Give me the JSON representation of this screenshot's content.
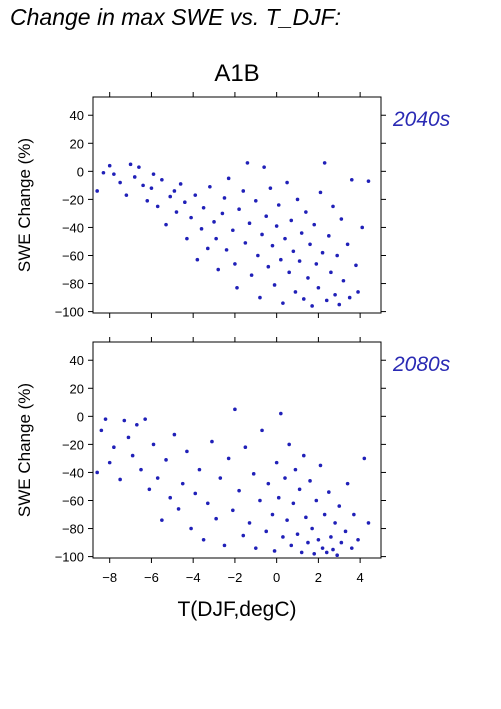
{
  "figure": {
    "title": "Change in max SWE vs. T_DJF:",
    "scenario": "A1B",
    "xlabel": "T(DJF,degC)",
    "ylabel": "SWE Change (%)",
    "point_color": "#2020b8",
    "label_color": "#2a2ab4"
  },
  "chart_data": [
    {
      "type": "scatter",
      "panel_label": "2040s",
      "xlabel": "T(DJF,degC)",
      "ylabel": "SWE Change (%)",
      "xlim": [
        -8.8,
        5.0
      ],
      "ylim": [
        -101,
        53
      ],
      "xticks": [
        -8,
        -6,
        -4,
        -2,
        0,
        2,
        4
      ],
      "yticks": [
        -100,
        -80,
        -60,
        -40,
        -20,
        0,
        20,
        40
      ],
      "points": [
        [
          -8.6,
          -14
        ],
        [
          -8.3,
          -1
        ],
        [
          -8.0,
          4
        ],
        [
          -7.8,
          -2
        ],
        [
          -7.5,
          -8
        ],
        [
          -7.2,
          -17
        ],
        [
          -7.0,
          5
        ],
        [
          -6.8,
          -4
        ],
        [
          -6.6,
          3
        ],
        [
          -6.4,
          -10
        ],
        [
          -6.2,
          -21
        ],
        [
          -6.0,
          -12
        ],
        [
          -5.9,
          -2
        ],
        [
          -5.7,
          -25
        ],
        [
          -5.5,
          -6
        ],
        [
          -5.3,
          -38
        ],
        [
          -5.1,
          -18
        ],
        [
          -4.9,
          -14
        ],
        [
          -4.8,
          -29
        ],
        [
          -4.6,
          -9
        ],
        [
          -4.4,
          -22
        ],
        [
          -4.3,
          -48
        ],
        [
          -4.1,
          -33
        ],
        [
          -3.9,
          -17
        ],
        [
          -3.8,
          -63
        ],
        [
          -3.6,
          -41
        ],
        [
          -3.5,
          -26
        ],
        [
          -3.3,
          -55
        ],
        [
          -3.2,
          -11
        ],
        [
          -3.0,
          -36
        ],
        [
          -2.9,
          -48
        ],
        [
          -2.8,
          -70
        ],
        [
          -2.6,
          -30
        ],
        [
          -2.5,
          -19
        ],
        [
          -2.4,
          -56
        ],
        [
          -2.3,
          -5
        ],
        [
          -2.1,
          -42
        ],
        [
          -2.0,
          -66
        ],
        [
          -1.9,
          -83
        ],
        [
          -1.8,
          -27
        ],
        [
          -1.6,
          -14
        ],
        [
          -1.5,
          -51
        ],
        [
          -1.4,
          6
        ],
        [
          -1.3,
          -37
        ],
        [
          -1.2,
          -74
        ],
        [
          -1.0,
          -21
        ],
        [
          -0.9,
          -60
        ],
        [
          -0.8,
          -90
        ],
        [
          -0.7,
          -45
        ],
        [
          -0.6,
          3
        ],
        [
          -0.5,
          -32
        ],
        [
          -0.4,
          -68
        ],
        [
          -0.3,
          -12
        ],
        [
          -0.2,
          -53
        ],
        [
          -0.1,
          -81
        ],
        [
          0.0,
          -39
        ],
        [
          0.1,
          -24
        ],
        [
          0.2,
          -63
        ],
        [
          0.3,
          -94
        ],
        [
          0.4,
          -48
        ],
        [
          0.5,
          -8
        ],
        [
          0.6,
          -72
        ],
        [
          0.7,
          -35
        ],
        [
          0.8,
          -57
        ],
        [
          0.9,
          -86
        ],
        [
          1.0,
          -20
        ],
        [
          1.1,
          -64
        ],
        [
          1.2,
          -44
        ],
        [
          1.3,
          -91
        ],
        [
          1.4,
          -29
        ],
        [
          1.5,
          -76
        ],
        [
          1.6,
          -52
        ],
        [
          1.7,
          -96
        ],
        [
          1.8,
          -38
        ],
        [
          1.9,
          -66
        ],
        [
          2.0,
          -83
        ],
        [
          2.1,
          -15
        ],
        [
          2.2,
          -58
        ],
        [
          2.3,
          6
        ],
        [
          2.4,
          -92
        ],
        [
          2.5,
          -46
        ],
        [
          2.6,
          -72
        ],
        [
          2.7,
          -25
        ],
        [
          2.8,
          -88
        ],
        [
          2.9,
          -60
        ],
        [
          3.0,
          -95
        ],
        [
          3.1,
          -34
        ],
        [
          3.2,
          -78
        ],
        [
          3.4,
          -52
        ],
        [
          3.5,
          -90
        ],
        [
          3.6,
          -6
        ],
        [
          3.8,
          -67
        ],
        [
          3.9,
          -86
        ],
        [
          4.1,
          -40
        ],
        [
          4.4,
          -7
        ]
      ]
    },
    {
      "type": "scatter",
      "panel_label": "2080s",
      "xlabel": "T(DJF,degC)",
      "ylabel": "SWE Change (%)",
      "xlim": [
        -8.8,
        5.0
      ],
      "ylim": [
        -101,
        53
      ],
      "xticks": [
        -8,
        -6,
        -4,
        -2,
        0,
        2,
        4
      ],
      "yticks": [
        -100,
        -80,
        -60,
        -40,
        -20,
        0,
        20,
        40
      ],
      "points": [
        [
          -8.6,
          -40
        ],
        [
          -8.4,
          -10
        ],
        [
          -8.2,
          -2
        ],
        [
          -8.0,
          -33
        ],
        [
          -7.8,
          -22
        ],
        [
          -7.5,
          -45
        ],
        [
          -7.3,
          -3
        ],
        [
          -7.1,
          -15
        ],
        [
          -6.9,
          -28
        ],
        [
          -6.7,
          -6
        ],
        [
          -6.5,
          -38
        ],
        [
          -6.3,
          -2
        ],
        [
          -6.1,
          -52
        ],
        [
          -5.9,
          -20
        ],
        [
          -5.7,
          -44
        ],
        [
          -5.5,
          -74
        ],
        [
          -5.3,
          -31
        ],
        [
          -5.1,
          -58
        ],
        [
          -4.9,
          -13
        ],
        [
          -4.7,
          -66
        ],
        [
          -4.5,
          -48
        ],
        [
          -4.3,
          -25
        ],
        [
          -4.1,
          -80
        ],
        [
          -3.9,
          -55
        ],
        [
          -3.7,
          -38
        ],
        [
          -3.5,
          -88
        ],
        [
          -3.3,
          -62
        ],
        [
          -3.1,
          -18
        ],
        [
          -2.9,
          -73
        ],
        [
          -2.7,
          -44
        ],
        [
          -2.5,
          -92
        ],
        [
          -2.3,
          -30
        ],
        [
          -2.1,
          -67
        ],
        [
          -2.0,
          5
        ],
        [
          -1.8,
          -53
        ],
        [
          -1.6,
          -85
        ],
        [
          -1.5,
          -22
        ],
        [
          -1.3,
          -76
        ],
        [
          -1.1,
          -41
        ],
        [
          -1.0,
          -94
        ],
        [
          -0.8,
          -60
        ],
        [
          -0.7,
          -10
        ],
        [
          -0.5,
          -82
        ],
        [
          -0.4,
          -48
        ],
        [
          -0.2,
          -70
        ],
        [
          -0.1,
          -96
        ],
        [
          0.0,
          -33
        ],
        [
          0.1,
          -58
        ],
        [
          0.2,
          2
        ],
        [
          0.3,
          -86
        ],
        [
          0.4,
          -44
        ],
        [
          0.5,
          -74
        ],
        [
          0.6,
          -20
        ],
        [
          0.7,
          -92
        ],
        [
          0.8,
          -62
        ],
        [
          0.9,
          -38
        ],
        [
          1.0,
          -84
        ],
        [
          1.1,
          -52
        ],
        [
          1.2,
          -97
        ],
        [
          1.3,
          -28
        ],
        [
          1.4,
          -72
        ],
        [
          1.5,
          -90
        ],
        [
          1.6,
          -46
        ],
        [
          1.7,
          -80
        ],
        [
          1.8,
          -98
        ],
        [
          1.9,
          -60
        ],
        [
          2.0,
          -88
        ],
        [
          2.1,
          -35
        ],
        [
          2.2,
          -94
        ],
        [
          2.3,
          -70
        ],
        [
          2.4,
          -97
        ],
        [
          2.5,
          -54
        ],
        [
          2.6,
          -86
        ],
        [
          2.7,
          -95
        ],
        [
          2.8,
          -76
        ],
        [
          2.9,
          -99
        ],
        [
          3.0,
          -64
        ],
        [
          3.1,
          -90
        ],
        [
          3.3,
          -82
        ],
        [
          3.4,
          -48
        ],
        [
          3.6,
          -94
        ],
        [
          3.7,
          -70
        ],
        [
          3.9,
          -88
        ],
        [
          4.2,
          -30
        ],
        [
          4.4,
          -76
        ]
      ]
    }
  ]
}
